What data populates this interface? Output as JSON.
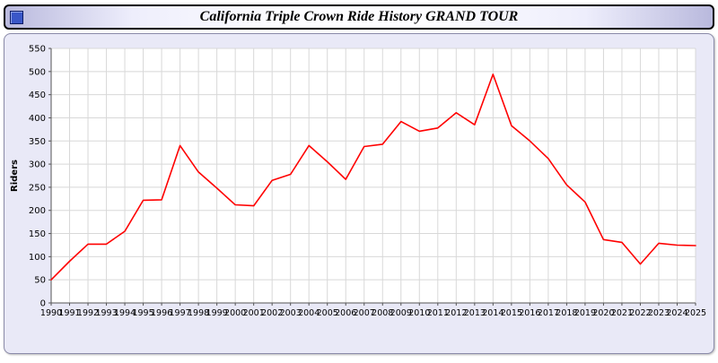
{
  "window": {
    "title": "California Triple Crown Ride History GRAND TOUR",
    "icon": "window-icon"
  },
  "chart_data": {
    "type": "line",
    "title": "California Triple Crown Ride History GRAND TOUR",
    "xlabel": "",
    "ylabel": "Riders",
    "ylim": [
      0,
      550
    ],
    "ytick_step": 50,
    "grid": true,
    "legend": "none",
    "line_color": "#ff0000",
    "categories": [
      "1990",
      "1991",
      "1992",
      "1993",
      "1994",
      "1995",
      "1996",
      "1997",
      "1998",
      "1999",
      "2000",
      "2001",
      "2002",
      "2003",
      "2004",
      "2005",
      "2006",
      "2007",
      "2008",
      "2009",
      "2010",
      "2011",
      "2012",
      "2013",
      "2014",
      "2015",
      "2016",
      "2017",
      "2018",
      "2019",
      "2020",
      "2021",
      "2022",
      "2023",
      "2024",
      "2025"
    ],
    "values": [
      50,
      90,
      127,
      127,
      155,
      222,
      223,
      340,
      283,
      248,
      212,
      210,
      265,
      278,
      340,
      305,
      267,
      338,
      343,
      392,
      371,
      378,
      411,
      385,
      494,
      383,
      350,
      312,
      255,
      218,
      137,
      131,
      84,
      129,
      125,
      124
    ]
  }
}
